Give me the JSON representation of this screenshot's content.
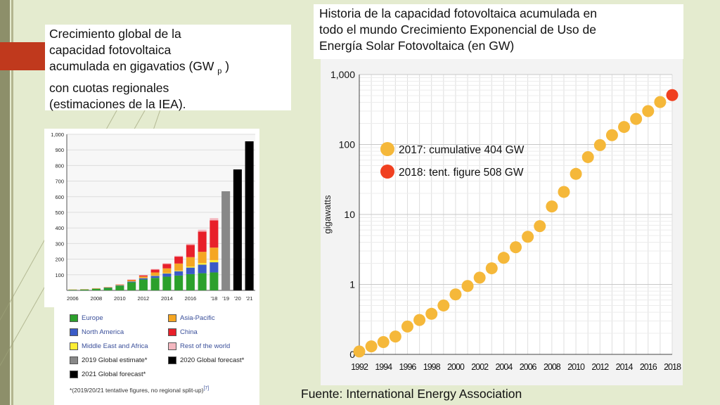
{
  "left_caption": {
    "line1": "Crecimiento global de la",
    "line2": "capacidad fotovoltaica",
    "line3a": "acumulada en gigavatios (GW",
    "line3sub": "p",
    "line3b": ")",
    "line4": "con cuotas regionales",
    "line5": "(estimaciones de la IEA)."
  },
  "right_caption": {
    "line1": "Historia de la capacidad fotovoltaica acumulada en",
    "line2": "todo el mundo Crecimiento Exponencial de Uso de",
    "line3": "Energía Solar Fotovoltaica (en GW)"
  },
  "source": "Fuente: International Energy  Association",
  "colors": {
    "europe": "#2ca02c",
    "north_america": "#3a5bc7",
    "middle_east_africa": "#ffee33",
    "asia_pacific": "#f5a623",
    "china": "#e8202a",
    "rest_of_world": "#f4b8c0",
    "global_estimate": "#888888",
    "forecast": "#000000",
    "cumulative_marker": "#f5b83a",
    "tentative_marker": "#f04020"
  },
  "chart_data": [
    {
      "type": "bar",
      "stacked": true,
      "ylim": [
        0,
        1000
      ],
      "yticks": [
        100,
        200,
        300,
        400,
        500,
        600,
        700,
        800,
        900,
        1000
      ],
      "ytick_labels": [
        "100",
        "200",
        "300",
        "400",
        "500",
        "600",
        "700",
        "800",
        "900",
        "1,000"
      ],
      "categories": [
        "2006",
        "2007",
        "2008",
        "2009",
        "2010",
        "2011",
        "2012",
        "2013",
        "2014",
        "2015",
        "2016",
        "2017",
        "2018",
        "2019",
        "2020",
        "2021"
      ],
      "xtick_labels": [
        {
          "index": 0,
          "label": "2006"
        },
        {
          "index": 2,
          "label": "2008"
        },
        {
          "index": 4,
          "label": "2010"
        },
        {
          "index": 6,
          "label": "2012"
        },
        {
          "index": 8,
          "label": "2014"
        },
        {
          "index": 10,
          "label": "2016"
        },
        {
          "index": 12,
          "label": "'18"
        },
        {
          "index": 13,
          "label": "'19"
        },
        {
          "index": 14,
          "label": "'20"
        },
        {
          "index": 15,
          "label": "'21"
        }
      ],
      "series": [
        {
          "name": "Europe",
          "color_key": "europe",
          "values": [
            3,
            5,
            10,
            16,
            30,
            52,
            70,
            80,
            88,
            95,
            104,
            110,
            115,
            0,
            0,
            0
          ]
        },
        {
          "name": "North America",
          "color_key": "north_america",
          "values": [
            1,
            1,
            1,
            2,
            3,
            5,
            8,
            13,
            20,
            28,
            42,
            55,
            65,
            0,
            0,
            0
          ]
        },
        {
          "name": "Middle East and Africa",
          "color_key": "middle_east_africa",
          "values": [
            0,
            0,
            0,
            0,
            0,
            1,
            1,
            2,
            3,
            4,
            7,
            10,
            14,
            0,
            0,
            0
          ]
        },
        {
          "name": "Asia-Pacific",
          "color_key": "asia_pacific",
          "values": [
            2,
            2,
            3,
            3,
            4,
            7,
            10,
            20,
            30,
            45,
            60,
            72,
            80,
            0,
            0,
            0
          ]
        },
        {
          "name": "China",
          "color_key": "china",
          "values": [
            0,
            0,
            0,
            0,
            1,
            3,
            7,
            18,
            28,
            44,
            78,
            130,
            175,
            0,
            0,
            0
          ]
        },
        {
          "name": "Rest of the world",
          "color_key": "rest_of_world",
          "values": [
            0,
            0,
            0,
            1,
            1,
            2,
            3,
            4,
            5,
            6,
            8,
            12,
            14,
            0,
            0,
            0
          ]
        },
        {
          "name": "2019 Global estimate*",
          "color_key": "global_estimate",
          "values": [
            0,
            0,
            0,
            0,
            0,
            0,
            0,
            0,
            0,
            0,
            0,
            0,
            0,
            635,
            0,
            0
          ]
        },
        {
          "name": "2020 Global forecast*",
          "color_key": "forecast",
          "values": [
            0,
            0,
            0,
            0,
            0,
            0,
            0,
            0,
            0,
            0,
            0,
            0,
            0,
            0,
            775,
            0
          ]
        },
        {
          "name": "2021 Global forecast*",
          "color_key": "forecast",
          "values": [
            0,
            0,
            0,
            0,
            0,
            0,
            0,
            0,
            0,
            0,
            0,
            0,
            0,
            0,
            0,
            955
          ]
        }
      ],
      "legend": [
        {
          "name": "Europe",
          "color_key": "europe"
        },
        {
          "name": "Asia-Pacific",
          "color_key": "asia_pacific"
        },
        {
          "name": "North America",
          "color_key": "north_america"
        },
        {
          "name": "China",
          "color_key": "china"
        },
        {
          "name": "Middle East and Africa",
          "color_key": "middle_east_africa"
        },
        {
          "name": "Rest of the world",
          "color_key": "rest_of_world"
        },
        {
          "name": "2019 Global estimate*",
          "color_key": "global_estimate"
        },
        {
          "name": "2020 Global forecast*",
          "color_key": "forecast"
        },
        {
          "name": "2021 Global forecast*",
          "color_key": "forecast"
        }
      ],
      "footnote": "*(2019/20/21 tentative figures, no regional split-up)",
      "footnote_ref": "[7]"
    },
    {
      "type": "scatter",
      "yscale": "log",
      "ylabel": "gigawatts",
      "ylim": [
        0.1,
        1000
      ],
      "yticks": [
        0.1,
        1,
        10,
        100,
        1000
      ],
      "ytick_labels": [
        "0",
        "1",
        "10",
        "100",
        "1,000"
      ],
      "xlim": [
        1992,
        2018
      ],
      "xtick_labels": [
        "1992",
        "1994",
        "1996",
        "1998",
        "2000",
        "2002",
        "2004",
        "2006",
        "2008",
        "2010",
        "2012",
        "2014",
        "2016",
        "2018"
      ],
      "grid": true,
      "legend_position": "top-left",
      "series": [
        {
          "name": "2017: cumulative 404 GW",
          "color_key": "cumulative_marker",
          "x": [
            1992,
            1993,
            1994,
            1995,
            1996,
            1997,
            1998,
            1999,
            2000,
            2001,
            2002,
            2003,
            2004,
            2005,
            2006,
            2007,
            2008,
            2009,
            2010,
            2011,
            2012,
            2013,
            2014,
            2015,
            2016,
            2017
          ],
          "y": [
            0.11,
            0.13,
            0.15,
            0.18,
            0.25,
            0.31,
            0.38,
            0.5,
            0.72,
            0.95,
            1.25,
            1.7,
            2.4,
            3.4,
            4.8,
            6.8,
            13,
            21,
            38,
            66,
            98,
            136,
            178,
            232,
            300,
            404
          ]
        },
        {
          "name": "2018: tent. figure  508 GW",
          "color_key": "tentative_marker",
          "x": [
            2018
          ],
          "y": [
            508
          ]
        }
      ]
    }
  ]
}
